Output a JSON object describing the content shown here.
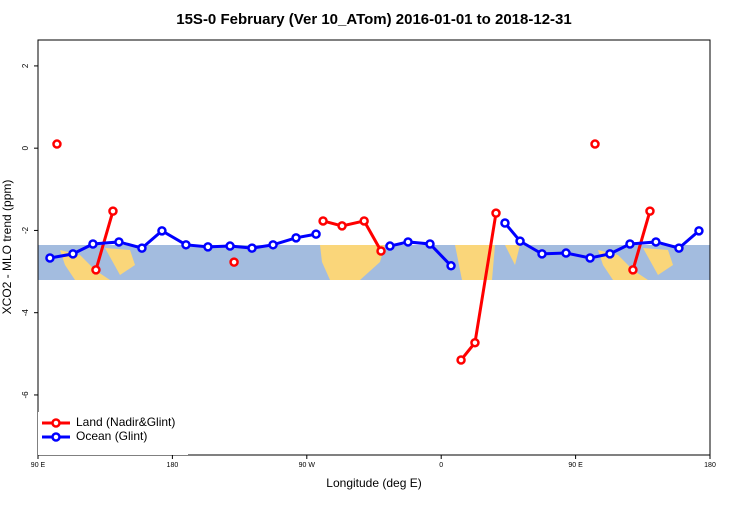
{
  "chart_data": {
    "type": "line",
    "title": "15S-0 February (Ver 10_ATom)   2016-01-01 to 2018-12-31",
    "xlabel": "Longitude (deg E)",
    "ylabel": "XCO2 - MLO trend (ppm)",
    "xlim": [
      90,
      540
    ],
    "xticks": [
      {
        "value": 90,
        "label": "90 E"
      },
      {
        "value": 180,
        "label": "180"
      },
      {
        "value": 270,
        "label": "90 W"
      },
      {
        "value": 360,
        "label": "0"
      },
      {
        "value": 450,
        "label": "90 E"
      },
      {
        "value": 540,
        "label": "180"
      }
    ],
    "ylim": [
      -7.46,
      2.63
    ],
    "yticks": [
      -6,
      -4,
      -2,
      0,
      2
    ],
    "legend": "bottom-left",
    "series": [
      {
        "name": "Land (Nadir&Glint)",
        "color": "#ff0000",
        "x": [
          102.7,
          null,
          128.8,
          140.2,
          null,
          221.3,
          null,
          280.9,
          293.6,
          308.4,
          319.7,
          null,
          373.3,
          382.6,
          396.7,
          null,
          463.0,
          null,
          488.4,
          499.8
        ],
        "values": [
          0.1,
          null,
          -2.96,
          -1.53,
          null,
          -2.77,
          null,
          -1.77,
          -1.89,
          -1.77,
          -2.5,
          null,
          -5.15,
          -4.73,
          -1.58,
          null,
          0.1,
          null,
          -2.96,
          -1.53
        ]
      },
      {
        "name": "Ocean (Glint)",
        "color": "#0000ff",
        "x": [
          98.0,
          113.4,
          126.8,
          144.2,
          159.6,
          173.0,
          189.1,
          203.8,
          218.6,
          233.3,
          247.4,
          262.8,
          276.2,
          null,
          325.7,
          337.8,
          352.5,
          366.6,
          null,
          402.7,
          412.8,
          427.5,
          443.6,
          459.7,
          473.0,
          486.4,
          503.8,
          519.2,
          532.6
        ],
        "values": [
          -2.67,
          -2.57,
          -2.33,
          -2.28,
          -2.43,
          -2.01,
          -2.35,
          -2.4,
          -2.38,
          -2.43,
          -2.35,
          -2.18,
          -2.09,
          null,
          -2.38,
          -2.28,
          -2.33,
          -2.86,
          null,
          -1.82,
          -2.26,
          -2.57,
          -2.55,
          -2.67,
          -2.57,
          -2.33,
          -2.28,
          -2.43,
          -2.01
        ]
      }
    ]
  }
}
